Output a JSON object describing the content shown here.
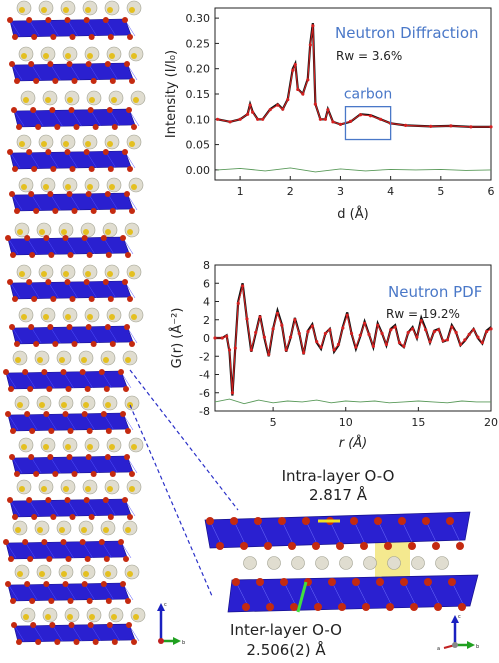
{
  "chart_data": [
    {
      "type": "line",
      "title": "Neutron Diffraction",
      "annotation": "Rw = 3.6%",
      "region_label": "carbon",
      "region_x": [
        3.1,
        4.0
      ],
      "xlabel": "d (Å)",
      "ylabel": "Intensity (I/I₀)",
      "xlim": [
        0.5,
        6
      ],
      "ylim": [
        -0.02,
        0.32
      ],
      "xticks": [
        1,
        2,
        3,
        4,
        5,
        6
      ],
      "xtick_labels": [
        "1",
        "2",
        "3",
        "4",
        "5",
        "6"
      ],
      "yticks": [
        0.0,
        0.05,
        0.1,
        0.15,
        0.2,
        0.25,
        0.3
      ],
      "ytick_labels": [
        "0.00",
        "0.05",
        "0.10",
        "0.15",
        "0.20",
        "0.25",
        "0.30"
      ],
      "series": [
        {
          "role": "observed",
          "color": "#111111",
          "x": [
            0.55,
            0.8,
            1.0,
            1.15,
            1.2,
            1.25,
            1.35,
            1.45,
            1.6,
            1.75,
            1.85,
            1.95,
            2.05,
            2.1,
            2.15,
            2.25,
            2.35,
            2.4,
            2.45,
            2.5,
            2.6,
            2.7,
            2.75,
            2.85,
            3.0,
            3.2,
            3.4,
            3.6,
            3.8,
            4.0,
            4.3,
            4.8,
            5.2,
            5.6,
            6.0
          ],
          "y": [
            0.1,
            0.095,
            0.1,
            0.11,
            0.13,
            0.115,
            0.1,
            0.1,
            0.12,
            0.13,
            0.12,
            0.14,
            0.2,
            0.21,
            0.16,
            0.15,
            0.18,
            0.25,
            0.29,
            0.13,
            0.1,
            0.1,
            0.12,
            0.095,
            0.09,
            0.095,
            0.11,
            0.108,
            0.1,
            0.092,
            0.088,
            0.086,
            0.087,
            0.085,
            0.085
          ]
        },
        {
          "role": "calculated",
          "color": "#d42020",
          "x": [
            0.55,
            0.8,
            1.0,
            1.15,
            1.2,
            1.25,
            1.35,
            1.45,
            1.6,
            1.75,
            1.85,
            1.95,
            2.05,
            2.1,
            2.15,
            2.25,
            2.35,
            2.4,
            2.45,
            2.5,
            2.6,
            2.7,
            2.75,
            2.85,
            3.0,
            3.2,
            3.4,
            3.6,
            3.8,
            4.0,
            4.3,
            4.8,
            5.2,
            5.6,
            6.0
          ],
          "y": [
            0.1,
            0.095,
            0.1,
            0.11,
            0.128,
            0.114,
            0.1,
            0.1,
            0.119,
            0.128,
            0.12,
            0.139,
            0.197,
            0.208,
            0.159,
            0.15,
            0.178,
            0.247,
            0.285,
            0.13,
            0.1,
            0.1,
            0.119,
            0.095,
            0.09,
            0.096,
            0.109,
            0.107,
            0.1,
            0.092,
            0.088,
            0.086,
            0.087,
            0.085,
            0.085
          ]
        },
        {
          "role": "difference",
          "color": "#5a9a5a",
          "x": [
            0.55,
            1.0,
            1.5,
            2.0,
            2.5,
            3.0,
            3.5,
            4.0,
            4.5,
            5.0,
            5.5,
            6.0
          ],
          "y": [
            0.0,
            0.003,
            -0.002,
            0.004,
            -0.004,
            0.002,
            -0.002,
            0.001,
            0.0,
            0.001,
            -0.001,
            0.0
          ]
        }
      ]
    },
    {
      "type": "line",
      "title": "Neutron PDF",
      "annotation": "Rw = 19.2%",
      "xlabel": "r (Å)",
      "ylabel": "G(r) (Å⁻²)",
      "xlim": [
        1,
        20
      ],
      "ylim": [
        -8,
        8
      ],
      "xticks": [
        5,
        10,
        15,
        20
      ],
      "xtick_labels": [
        "5",
        "10",
        "15",
        "20"
      ],
      "yticks": [
        -8,
        -6,
        -4,
        -2,
        0,
        2,
        4,
        6,
        8
      ],
      "ytick_labels": [
        "-8",
        "-6",
        "-4",
        "-2",
        "0",
        "2",
        "4",
        "6",
        "8"
      ],
      "series": [
        {
          "role": "observed",
          "color": "#111111",
          "x": [
            1.0,
            1.5,
            1.8,
            2.0,
            2.2,
            2.4,
            2.6,
            2.9,
            3.2,
            3.5,
            3.8,
            4.1,
            4.4,
            4.7,
            5.0,
            5.3,
            5.6,
            5.9,
            6.2,
            6.5,
            6.8,
            7.1,
            7.4,
            7.7,
            8.0,
            8.3,
            8.6,
            8.9,
            9.2,
            9.5,
            9.8,
            10.1,
            10.4,
            10.7,
            11.0,
            11.3,
            11.6,
            11.9,
            12.2,
            12.5,
            12.8,
            13.1,
            13.4,
            13.7,
            14.0,
            14.3,
            14.6,
            14.9,
            15.2,
            15.5,
            15.8,
            16.1,
            16.4,
            16.7,
            17.0,
            17.3,
            17.6,
            17.9,
            18.2,
            18.5,
            18.8,
            19.1,
            19.4,
            19.7,
            20.0
          ],
          "y": [
            0.0,
            0.0,
            0.3,
            -1.5,
            -6.3,
            -1.0,
            4.0,
            6.0,
            2.0,
            -1.5,
            0.5,
            2.5,
            0.0,
            -2.0,
            1.0,
            3.0,
            1.5,
            -1.5,
            0.0,
            2.2,
            0.5,
            -1.8,
            0.8,
            1.5,
            -0.5,
            -1.2,
            0.5,
            1.0,
            -1.5,
            -0.8,
            1.2,
            2.8,
            0.5,
            -1.2,
            0.2,
            1.8,
            0.4,
            -1.0,
            1.6,
            0.5,
            -0.8,
            1.0,
            1.4,
            -0.6,
            -1.0,
            0.6,
            1.2,
            0.0,
            2.2,
            1.0,
            -0.5,
            0.8,
            1.0,
            -0.4,
            -0.2,
            1.4,
            0.6,
            -0.8,
            -0.3,
            0.4,
            1.0,
            0.0,
            -0.6,
            0.8,
            1.2
          ]
        },
        {
          "role": "calculated",
          "color": "#d42020",
          "x": [
            1.0,
            1.5,
            1.8,
            2.0,
            2.2,
            2.4,
            2.6,
            2.9,
            3.2,
            3.5,
            3.8,
            4.1,
            4.4,
            4.7,
            5.0,
            5.3,
            5.6,
            5.9,
            6.2,
            6.5,
            6.8,
            7.1,
            7.4,
            7.7,
            8.0,
            8.3,
            8.6,
            8.9,
            9.2,
            9.5,
            9.8,
            10.1,
            10.4,
            10.7,
            11.0,
            11.3,
            11.6,
            11.9,
            12.2,
            12.5,
            12.8,
            13.1,
            13.4,
            13.7,
            14.0,
            14.3,
            14.6,
            14.9,
            15.2,
            15.5,
            15.8,
            16.1,
            16.4,
            16.7,
            17.0,
            17.3,
            17.6,
            17.9,
            18.2,
            18.5,
            18.8,
            19.1,
            19.4,
            19.7,
            20.0
          ],
          "y": [
            0.0,
            0.0,
            0.2,
            -1.3,
            -6.0,
            -1.1,
            3.8,
            5.7,
            2.1,
            -1.3,
            0.6,
            2.3,
            0.1,
            -1.8,
            1.0,
            2.7,
            1.4,
            -1.3,
            0.1,
            2.0,
            0.5,
            -1.6,
            0.7,
            1.3,
            -0.4,
            -1.0,
            0.5,
            0.9,
            -1.3,
            -0.7,
            1.1,
            2.5,
            0.5,
            -1.0,
            0.3,
            1.6,
            0.4,
            -0.9,
            1.4,
            0.5,
            -0.7,
            0.9,
            1.2,
            -0.5,
            -0.9,
            0.6,
            1.0,
            0.1,
            1.9,
            0.9,
            -0.4,
            0.7,
            0.9,
            -0.3,
            -0.2,
            1.2,
            0.6,
            -0.7,
            -0.2,
            0.4,
            0.9,
            0.1,
            -0.5,
            0.7,
            1.0
          ]
        },
        {
          "role": "difference",
          "color": "#5a9a5a",
          "x": [
            1.0,
            2.0,
            3.0,
            4.0,
            5.0,
            6.0,
            7.0,
            8.0,
            9.0,
            10.0,
            11.0,
            12.0,
            13.0,
            14.0,
            15.0,
            16.0,
            17.0,
            18.0,
            19.0,
            20.0
          ],
          "y": [
            -7.0,
            -6.7,
            -7.2,
            -6.8,
            -7.1,
            -6.9,
            -7.0,
            -6.8,
            -7.1,
            -6.9,
            -7.0,
            -6.9,
            -7.1,
            -7.0,
            -6.9,
            -7.0,
            -7.1,
            -6.9,
            -7.0,
            -7.0
          ]
        }
      ]
    }
  ],
  "structure_labels": {
    "intra_title": "Intra-layer O-O",
    "intra_value": "2.817 Å",
    "inter_title": "Inter-layer O-O",
    "inter_value": "2.506(2) Å"
  },
  "axis_triad_labels": {
    "up": "c",
    "right": "b",
    "left": "a"
  },
  "colors": {
    "octahedra": "#2a20d0",
    "oxygen": "#c42a10",
    "cation": "#e0ddd0",
    "cation_core": "#e4c020",
    "highlight": "#f0e060"
  }
}
